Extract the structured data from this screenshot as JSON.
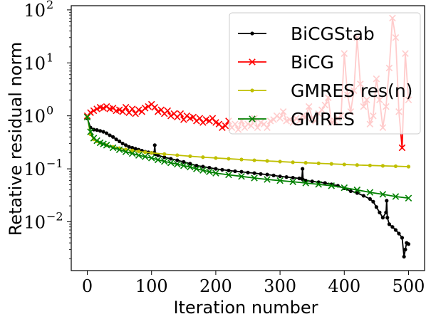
{
  "chart_data": {
    "type": "line",
    "xlabel": "Iteration number",
    "ylabel": "Retative residual norm",
    "xlim": [
      -25,
      525
    ],
    "ylim": [
      0.0012,
      120
    ],
    "yscale": "log",
    "xticks": [
      0,
      100,
      200,
      300,
      400,
      500
    ],
    "xtick_labels": [
      "0",
      "100",
      "200",
      "300",
      "400",
      "500"
    ],
    "yticks": [
      0.01,
      0.1,
      1,
      10,
      100
    ],
    "ytick_bases": [
      "10",
      "10",
      "10",
      "10",
      "10"
    ],
    "ytick_exponents": [
      "−2",
      "−1",
      "0",
      "1",
      "2"
    ],
    "grid": false,
    "legend_position": "top-right",
    "series": [
      {
        "name": "BiCGStab",
        "color": "#000000",
        "marker": "dot",
        "x": [
          0,
          5,
          10,
          15,
          20,
          25,
          30,
          35,
          40,
          45,
          50,
          55,
          60,
          65,
          70,
          75,
          80,
          85,
          90,
          95,
          100,
          104,
          105,
          106,
          110,
          120,
          130,
          140,
          150,
          160,
          170,
          180,
          190,
          200,
          210,
          220,
          230,
          240,
          250,
          260,
          270,
          280,
          290,
          300,
          310,
          320,
          330,
          334,
          335,
          336,
          340,
          350,
          360,
          370,
          380,
          390,
          400,
          410,
          420,
          430,
          440,
          445,
          450,
          455,
          460,
          465,
          466,
          467,
          470,
          475,
          480,
          485,
          490,
          493,
          495,
          497,
          500
        ],
        "y": [
          0.9,
          0.6,
          0.55,
          0.54,
          0.52,
          0.5,
          0.47,
          0.43,
          0.4,
          0.36,
          0.33,
          0.3,
          0.28,
          0.26,
          0.25,
          0.24,
          0.23,
          0.22,
          0.21,
          0.205,
          0.2,
          0.2,
          0.28,
          0.19,
          0.18,
          0.165,
          0.155,
          0.145,
          0.135,
          0.125,
          0.115,
          0.11,
          0.105,
          0.1,
          0.096,
          0.093,
          0.09,
          0.088,
          0.085,
          0.083,
          0.08,
          0.078,
          0.075,
          0.072,
          0.07,
          0.068,
          0.066,
          0.065,
          0.1,
          0.062,
          0.06,
          0.058,
          0.056,
          0.054,
          0.051,
          0.048,
          0.043,
          0.038,
          0.035,
          0.031,
          0.027,
          0.024,
          0.019,
          0.015,
          0.012,
          0.015,
          0.025,
          0.012,
          0.009,
          0.008,
          0.007,
          0.006,
          0.005,
          0.0022,
          0.003,
          0.004,
          0.0038
        ]
      },
      {
        "name": "BiCG",
        "color": "#ff0000",
        "marker": "x",
        "x": [
          0,
          5,
          10,
          15,
          20,
          25,
          30,
          35,
          40,
          45,
          50,
          55,
          60,
          65,
          70,
          75,
          80,
          85,
          90,
          95,
          100,
          105,
          110,
          115,
          120,
          125,
          130,
          135,
          140,
          145,
          150,
          155,
          160,
          165,
          170,
          175,
          180,
          185,
          190,
          195,
          200,
          205,
          210,
          215,
          220,
          225,
          230,
          235,
          240,
          245,
          250,
          255,
          260,
          265,
          270,
          275,
          280,
          285,
          290,
          295,
          300,
          305,
          310,
          315,
          320,
          325,
          330,
          335,
          340,
          345,
          350,
          355,
          360,
          365,
          370,
          375,
          380,
          385,
          390,
          395,
          400,
          405,
          410,
          415,
          420,
          425,
          430,
          435,
          440,
          445,
          450,
          455,
          460,
          465,
          470,
          475,
          480,
          485,
          490,
          495,
          500
        ],
        "y": [
          1.0,
          1.15,
          1.25,
          1.35,
          1.45,
          1.4,
          1.5,
          1.35,
          1.4,
          1.25,
          1.3,
          1.2,
          1.45,
          1.15,
          1.35,
          1.1,
          1.3,
          1.2,
          1.4,
          1.5,
          1.65,
          1.45,
          1.2,
          1.3,
          1.1,
          1.25,
          1.0,
          1.1,
          0.95,
          1.1,
          0.85,
          1.0,
          0.9,
          0.95,
          0.8,
          0.9,
          0.75,
          0.85,
          0.8,
          0.9,
          0.75,
          0.7,
          0.6,
          0.65,
          0.8,
          0.6,
          0.7,
          0.55,
          0.8,
          0.6,
          0.7,
          0.65,
          0.9,
          0.6,
          0.75,
          0.7,
          0.6,
          0.8,
          0.85,
          1.0,
          0.9,
          1.2,
          0.8,
          0.85,
          0.75,
          0.9,
          0.8,
          1.0,
          0.95,
          1.5,
          0.9,
          0.8,
          1.1,
          1.3,
          1.6,
          2.2,
          0.75,
          0.8,
          0.9,
          1.0,
          15,
          2.5,
          1.2,
          3.0,
          30,
          4.0,
          1.5,
          2.0,
          0.7,
          1.0,
          5.0,
          2.0,
          0.6,
          1.5,
          8.0,
          70,
          30,
          1.2,
          0.25,
          15,
          2.0
        ]
      },
      {
        "name": "GMRES res(n)",
        "color": "#bfbf00",
        "marker": "dot",
        "x": [
          0,
          5,
          10,
          15,
          20,
          30,
          40,
          50,
          60,
          70,
          80,
          90,
          100,
          120,
          140,
          160,
          180,
          200,
          220,
          240,
          260,
          280,
          300,
          320,
          340,
          360,
          380,
          400,
          420,
          440,
          460,
          480,
          500
        ],
        "y": [
          0.95,
          0.45,
          0.36,
          0.33,
          0.31,
          0.28,
          0.26,
          0.245,
          0.232,
          0.222,
          0.213,
          0.206,
          0.2,
          0.19,
          0.181,
          0.173,
          0.166,
          0.16,
          0.155,
          0.15,
          0.145,
          0.141,
          0.137,
          0.133,
          0.13,
          0.127,
          0.124,
          0.121,
          0.118,
          0.116,
          0.114,
          0.112,
          0.11
        ]
      },
      {
        "name": "GMRES",
        "color": "#008000",
        "marker": "x",
        "x": [
          0,
          5,
          10,
          15,
          20,
          25,
          30,
          40,
          50,
          60,
          70,
          80,
          90,
          100,
          110,
          120,
          130,
          140,
          150,
          160,
          170,
          180,
          190,
          200,
          220,
          240,
          260,
          280,
          300,
          320,
          340,
          360,
          380,
          400,
          420,
          440,
          460,
          480,
          500
        ],
        "y": [
          0.95,
          0.5,
          0.38,
          0.34,
          0.31,
          0.295,
          0.28,
          0.25,
          0.23,
          0.21,
          0.195,
          0.18,
          0.17,
          0.16,
          0.148,
          0.138,
          0.13,
          0.122,
          0.115,
          0.108,
          0.1,
          0.094,
          0.088,
          0.083,
          0.077,
          0.072,
          0.067,
          0.063,
          0.06,
          0.057,
          0.054,
          0.051,
          0.048,
          0.044,
          0.04,
          0.036,
          0.033,
          0.03,
          0.028
        ]
      }
    ]
  }
}
